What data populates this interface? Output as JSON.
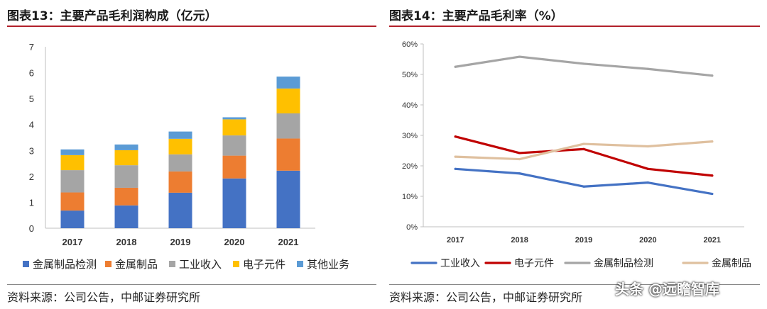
{
  "left_panel": {
    "title": "图表13：主要产品毛利润构成（亿元）",
    "source": "资料来源：公司公告，中邮证券研究所"
  },
  "right_panel": {
    "title": "图表14：主要产品毛利率（%）",
    "source": "资料来源：公司公告，中邮证券研究所"
  },
  "watermark": "头条 @远瞻智库",
  "chart_data": [
    {
      "type": "bar",
      "stacked": true,
      "categories": [
        "2017",
        "2018",
        "2019",
        "2020",
        "2021"
      ],
      "ylim": [
        0,
        7
      ],
      "yticks": [
        "0",
        "1",
        "2",
        "3",
        "4",
        "5",
        "6",
        "7"
      ],
      "grid": false,
      "legend_position": "bottom",
      "series": [
        {
          "name": "金属制品检测",
          "color": "#4472c4",
          "values": [
            0.68,
            0.88,
            1.37,
            1.92,
            2.22
          ]
        },
        {
          "name": "金属制品",
          "color": "#ed7d31",
          "values": [
            0.7,
            0.68,
            0.82,
            0.88,
            1.24
          ]
        },
        {
          "name": "工业收入",
          "color": "#a5a5a5",
          "values": [
            0.86,
            0.87,
            0.66,
            0.78,
            0.97
          ]
        },
        {
          "name": "电子元件",
          "color": "#ffc000",
          "values": [
            0.58,
            0.58,
            0.6,
            0.62,
            0.96
          ]
        },
        {
          "name": "其他业务",
          "color": "#5b9bd5",
          "values": [
            0.22,
            0.22,
            0.28,
            0.08,
            0.46
          ]
        }
      ]
    },
    {
      "type": "line",
      "x": [
        "2017",
        "2018",
        "2019",
        "2020",
        "2021"
      ],
      "ylim": [
        0,
        60
      ],
      "yticks": [
        "0%",
        "10%",
        "20%",
        "30%",
        "40%",
        "50%",
        "60%"
      ],
      "grid": false,
      "legend_position": "bottom",
      "series": [
        {
          "name": "工业收入",
          "color": "#4472c4",
          "values": [
            19.0,
            17.5,
            13.2,
            14.5,
            10.8
          ]
        },
        {
          "name": "电子元件",
          "color": "#c00000",
          "values": [
            29.6,
            24.2,
            25.5,
            19.0,
            16.8
          ]
        },
        {
          "name": "金属制品检测",
          "color": "#a5a5a5",
          "values": [
            52.5,
            55.8,
            53.5,
            51.8,
            49.6
          ]
        },
        {
          "name": "金属制品",
          "color": "#dfc09f",
          "values": [
            23.0,
            22.2,
            27.2,
            26.4,
            28.0
          ]
        }
      ]
    }
  ]
}
